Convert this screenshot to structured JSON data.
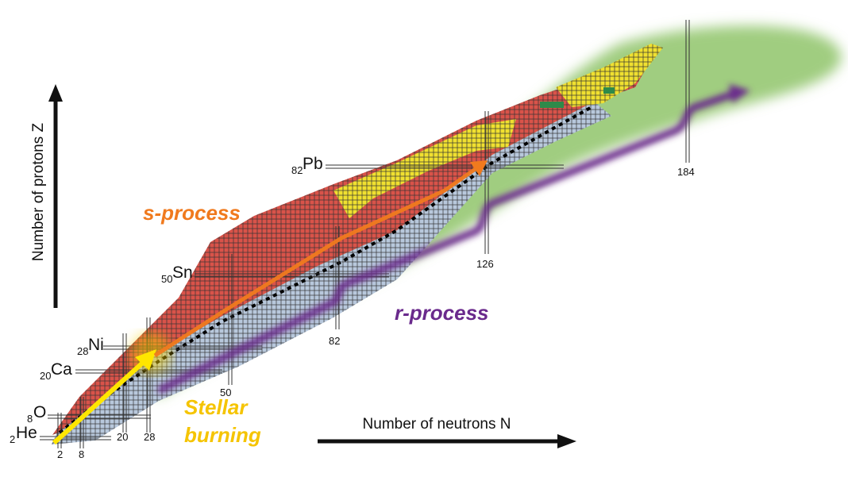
{
  "axes": {
    "y_label": "Number of protons Z",
    "x_label": "Number of neutrons N"
  },
  "elements": [
    {
      "z": "2",
      "symbol": "He"
    },
    {
      "z": "8",
      "symbol": "O"
    },
    {
      "z": "20",
      "symbol": "Ca"
    },
    {
      "z": "28",
      "symbol": "Ni"
    },
    {
      "z": "50",
      "symbol": "Sn"
    },
    {
      "z": "82",
      "symbol": "Pb"
    }
  ],
  "neutron_magic_numbers": [
    "2",
    "8",
    "20",
    "28",
    "50",
    "82",
    "126",
    "184"
  ],
  "processes": {
    "s": {
      "label": "s-process",
      "color": "#f07a1e"
    },
    "r": {
      "label": "r-process",
      "color": "#6a2a8c"
    },
    "stellar": {
      "label_line1": "Stellar",
      "label_line2": "burning",
      "color": "#f5c400"
    }
  },
  "colors": {
    "neutron_rich": "#b8c8dc",
    "proton_rich": "#d9534a",
    "heavy": "#f0e030",
    "stable": "#000000",
    "unknown_region": "#8fc46a"
  }
}
